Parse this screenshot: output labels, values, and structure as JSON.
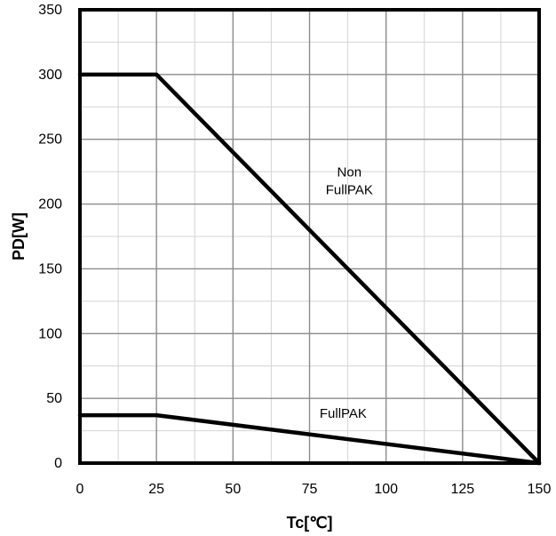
{
  "chart_data": {
    "type": "line",
    "xlabel": "Tc[℃]",
    "ylabel": "PD[W]",
    "xlim": [
      0,
      150
    ],
    "ylim": [
      0,
      350
    ],
    "x_ticks": [
      0,
      25,
      50,
      75,
      100,
      125,
      150
    ],
    "y_ticks": [
      0,
      50,
      100,
      150,
      200,
      250,
      300,
      350
    ],
    "x_minor_step": 12.5,
    "y_minor_step": 25,
    "grid": true,
    "series": [
      {
        "name": "Non FullPAK",
        "x": [
          0,
          25,
          150
        ],
        "y": [
          300,
          300,
          0
        ],
        "color": "#000000"
      },
      {
        "name": "FullPAK",
        "x": [
          0,
          25,
          150
        ],
        "y": [
          37,
          37,
          0
        ],
        "color": "#000000"
      }
    ],
    "annotations": [
      {
        "lines": [
          "Non",
          "FullPAK"
        ],
        "x": 88,
        "y": 215
      },
      {
        "lines": [
          "FullPAK"
        ],
        "x": 86,
        "y": 35
      }
    ]
  }
}
